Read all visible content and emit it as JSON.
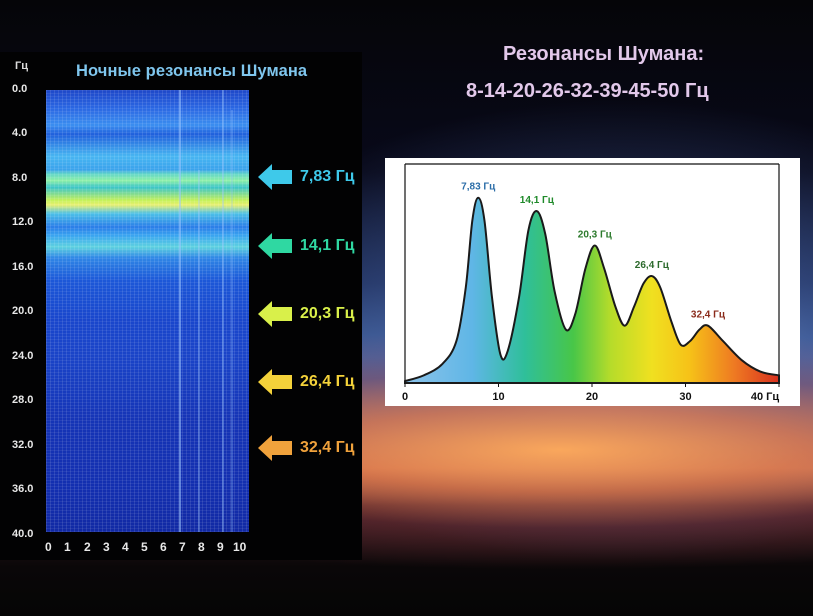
{
  "headline": {
    "line1": "Резонансы Шумана:",
    "line2": "8-14-20-26-32-39-45-50 Гц"
  },
  "spectrogram": {
    "title": "Ночные резонансы Шумана",
    "unit": "Гц",
    "y_ticks": [
      "0.0",
      "4.0",
      "8.0",
      "12.0",
      "16.0",
      "20.0",
      "24.0",
      "28.0",
      "32.0",
      "36.0",
      "40.0"
    ],
    "x_ticks": [
      "0",
      "1",
      "2",
      "3",
      "4",
      "5",
      "6",
      "7",
      "8",
      "9",
      "10"
    ],
    "arrows": [
      {
        "label": "7,83 Гц",
        "freq": 7.83,
        "color": "#3ec9ea"
      },
      {
        "label": "14,1 Гц",
        "freq": 14.1,
        "color": "#2fd8a2"
      },
      {
        "label": "20,3 Гц",
        "freq": 20.3,
        "color": "#d9f04a"
      },
      {
        "label": "26,4 Гц",
        "freq": 26.4,
        "color": "#f4d23a"
      },
      {
        "label": "32,4 Гц",
        "freq": 32.4,
        "color": "#f0a23c"
      }
    ]
  },
  "chart_data": [
    {
      "type": "heatmap",
      "title": "Ночные резонансы Шумана",
      "ylabel": "Гц",
      "ylim": [
        0,
        40
      ],
      "xlim": [
        0,
        10
      ],
      "y_axis_inverted": true,
      "highlighted_frequencies": [
        7.83,
        14.1,
        20.3,
        26.4,
        32.4
      ]
    },
    {
      "type": "area",
      "xlabel": "Гц",
      "xlim": [
        0,
        40
      ],
      "x_ticks": [
        0,
        10,
        20,
        30,
        40
      ],
      "x_tick_labels": [
        "0",
        "10",
        "20",
        "30",
        "40 Гц"
      ],
      "peaks": [
        {
          "x": 7.83,
          "y": 0.97,
          "label": "7,83 Гц",
          "color": "#2c6ea8"
        },
        {
          "x": 14.1,
          "y": 0.9,
          "label": "14,1 Гц",
          "color": "#1f8a2a"
        },
        {
          "x": 20.3,
          "y": 0.72,
          "label": "20,3 Гц",
          "color": "#2c7a2c"
        },
        {
          "x": 26.4,
          "y": 0.56,
          "label": "26,4 Гц",
          "color": "#2c6a2c"
        },
        {
          "x": 32.4,
          "y": 0.3,
          "label": "32,4 Гц",
          "color": "#8a2a1a"
        }
      ],
      "curve": [
        [
          0.0,
          0.01
        ],
        [
          2.0,
          0.04
        ],
        [
          4.0,
          0.1
        ],
        [
          5.5,
          0.22
        ],
        [
          6.5,
          0.5
        ],
        [
          7.2,
          0.85
        ],
        [
          7.83,
          0.97
        ],
        [
          8.5,
          0.85
        ],
        [
          9.3,
          0.45
        ],
        [
          10.2,
          0.15
        ],
        [
          11.0,
          0.17
        ],
        [
          12.2,
          0.45
        ],
        [
          13.2,
          0.8
        ],
        [
          14.1,
          0.9
        ],
        [
          15.0,
          0.78
        ],
        [
          16.0,
          0.48
        ],
        [
          17.2,
          0.28
        ],
        [
          18.2,
          0.36
        ],
        [
          19.3,
          0.6
        ],
        [
          20.3,
          0.72
        ],
        [
          21.3,
          0.6
        ],
        [
          22.5,
          0.4
        ],
        [
          23.5,
          0.3
        ],
        [
          24.5,
          0.4
        ],
        [
          25.5,
          0.52
        ],
        [
          26.4,
          0.56
        ],
        [
          27.3,
          0.5
        ],
        [
          28.5,
          0.32
        ],
        [
          29.5,
          0.2
        ],
        [
          30.5,
          0.22
        ],
        [
          31.5,
          0.28
        ],
        [
          32.4,
          0.3
        ],
        [
          34.0,
          0.22
        ],
        [
          36.0,
          0.12
        ],
        [
          38.0,
          0.06
        ],
        [
          40.0,
          0.04
        ]
      ]
    }
  ]
}
